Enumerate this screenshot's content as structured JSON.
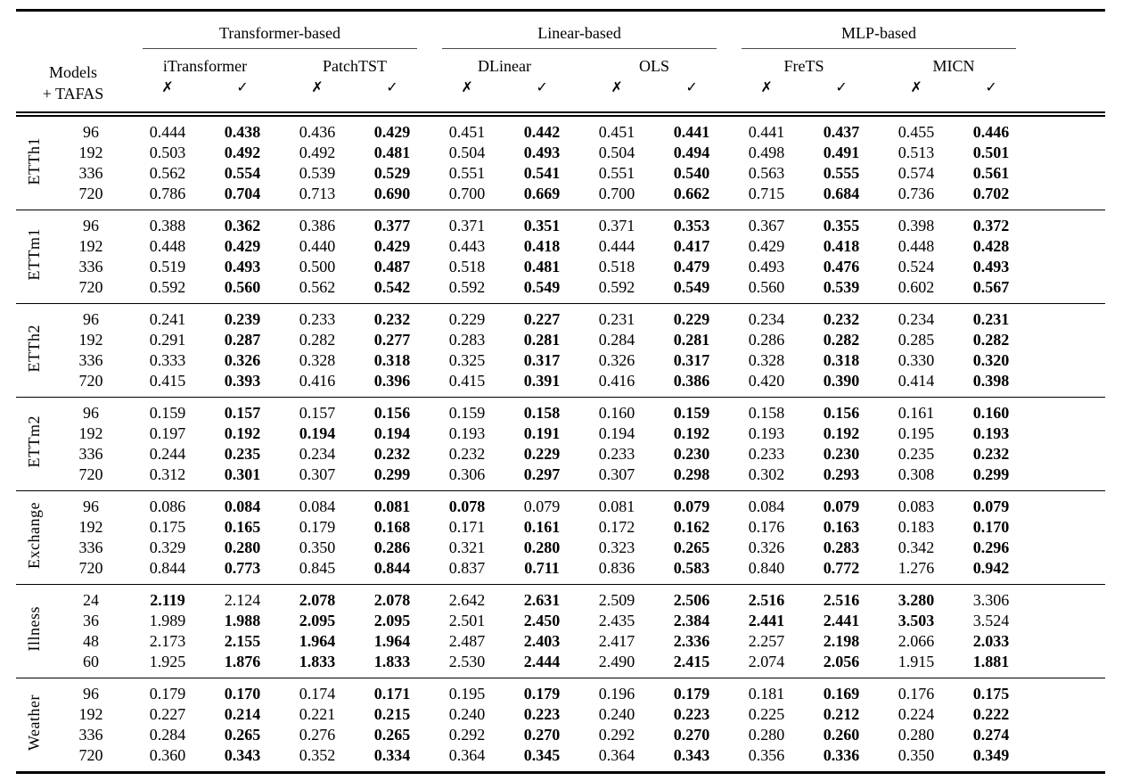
{
  "chart_data": {
    "type": "table",
    "corner": {
      "line1": "Models",
      "line2": "+ TAFAS"
    },
    "group_headers": [
      "Transformer-based",
      "Linear-based",
      "MLP-based"
    ],
    "models": [
      "iTransformer",
      "PatchTST",
      "DLinear",
      "OLS",
      "FreTS",
      "MICN"
    ],
    "symbols": {
      "without": "✗",
      "with": "✓"
    },
    "column_order_note": "for each model: left column = ✗ (without TAFAS), right column = ✓ (with TAFAS)",
    "sections": [
      {
        "dataset": "ETTh1",
        "rows": [
          {
            "horizon": "96",
            "values": [
              "0.444",
              "0.438",
              "0.436",
              "0.429",
              "0.451",
              "0.442",
              "0.451",
              "0.441",
              "0.441",
              "0.437",
              "0.455",
              "0.446"
            ],
            "bold": [
              0,
              1,
              0,
              1,
              0,
              1,
              0,
              1,
              0,
              1,
              0,
              1
            ]
          },
          {
            "horizon": "192",
            "values": [
              "0.503",
              "0.492",
              "0.492",
              "0.481",
              "0.504",
              "0.493",
              "0.504",
              "0.494",
              "0.498",
              "0.491",
              "0.513",
              "0.501"
            ],
            "bold": [
              0,
              1,
              0,
              1,
              0,
              1,
              0,
              1,
              0,
              1,
              0,
              1
            ]
          },
          {
            "horizon": "336",
            "values": [
              "0.562",
              "0.554",
              "0.539",
              "0.529",
              "0.551",
              "0.541",
              "0.551",
              "0.540",
              "0.563",
              "0.555",
              "0.574",
              "0.561"
            ],
            "bold": [
              0,
              1,
              0,
              1,
              0,
              1,
              0,
              1,
              0,
              1,
              0,
              1
            ]
          },
          {
            "horizon": "720",
            "values": [
              "0.786",
              "0.704",
              "0.713",
              "0.690",
              "0.700",
              "0.669",
              "0.700",
              "0.662",
              "0.715",
              "0.684",
              "0.736",
              "0.702"
            ],
            "bold": [
              0,
              1,
              0,
              1,
              0,
              1,
              0,
              1,
              0,
              1,
              0,
              1
            ]
          }
        ]
      },
      {
        "dataset": "ETTm1",
        "rows": [
          {
            "horizon": "96",
            "values": [
              "0.388",
              "0.362",
              "0.386",
              "0.377",
              "0.371",
              "0.351",
              "0.371",
              "0.353",
              "0.367",
              "0.355",
              "0.398",
              "0.372"
            ],
            "bold": [
              0,
              1,
              0,
              1,
              0,
              1,
              0,
              1,
              0,
              1,
              0,
              1
            ]
          },
          {
            "horizon": "192",
            "values": [
              "0.448",
              "0.429",
              "0.440",
              "0.429",
              "0.443",
              "0.418",
              "0.444",
              "0.417",
              "0.429",
              "0.418",
              "0.448",
              "0.428"
            ],
            "bold": [
              0,
              1,
              0,
              1,
              0,
              1,
              0,
              1,
              0,
              1,
              0,
              1
            ]
          },
          {
            "horizon": "336",
            "values": [
              "0.519",
              "0.493",
              "0.500",
              "0.487",
              "0.518",
              "0.481",
              "0.518",
              "0.479",
              "0.493",
              "0.476",
              "0.524",
              "0.493"
            ],
            "bold": [
              0,
              1,
              0,
              1,
              0,
              1,
              0,
              1,
              0,
              1,
              0,
              1
            ]
          },
          {
            "horizon": "720",
            "values": [
              "0.592",
              "0.560",
              "0.562",
              "0.542",
              "0.592",
              "0.549",
              "0.592",
              "0.549",
              "0.560",
              "0.539",
              "0.602",
              "0.567"
            ],
            "bold": [
              0,
              1,
              0,
              1,
              0,
              1,
              0,
              1,
              0,
              1,
              0,
              1
            ]
          }
        ]
      },
      {
        "dataset": "ETTh2",
        "rows": [
          {
            "horizon": "96",
            "values": [
              "0.241",
              "0.239",
              "0.233",
              "0.232",
              "0.229",
              "0.227",
              "0.231",
              "0.229",
              "0.234",
              "0.232",
              "0.234",
              "0.231"
            ],
            "bold": [
              0,
              1,
              0,
              1,
              0,
              1,
              0,
              1,
              0,
              1,
              0,
              1
            ]
          },
          {
            "horizon": "192",
            "values": [
              "0.291",
              "0.287",
              "0.282",
              "0.277",
              "0.283",
              "0.281",
              "0.284",
              "0.281",
              "0.286",
              "0.282",
              "0.285",
              "0.282"
            ],
            "bold": [
              0,
              1,
              0,
              1,
              0,
              1,
              0,
              1,
              0,
              1,
              0,
              1
            ]
          },
          {
            "horizon": "336",
            "values": [
              "0.333",
              "0.326",
              "0.328",
              "0.318",
              "0.325",
              "0.317",
              "0.326",
              "0.317",
              "0.328",
              "0.318",
              "0.330",
              "0.320"
            ],
            "bold": [
              0,
              1,
              0,
              1,
              0,
              1,
              0,
              1,
              0,
              1,
              0,
              1
            ]
          },
          {
            "horizon": "720",
            "values": [
              "0.415",
              "0.393",
              "0.416",
              "0.396",
              "0.415",
              "0.391",
              "0.416",
              "0.386",
              "0.420",
              "0.390",
              "0.414",
              "0.398"
            ],
            "bold": [
              0,
              1,
              0,
              1,
              0,
              1,
              0,
              1,
              0,
              1,
              0,
              1
            ]
          }
        ]
      },
      {
        "dataset": "ETTm2",
        "rows": [
          {
            "horizon": "96",
            "values": [
              "0.159",
              "0.157",
              "0.157",
              "0.156",
              "0.159",
              "0.158",
              "0.160",
              "0.159",
              "0.158",
              "0.156",
              "0.161",
              "0.160"
            ],
            "bold": [
              0,
              1,
              0,
              1,
              0,
              1,
              0,
              1,
              0,
              1,
              0,
              1
            ]
          },
          {
            "horizon": "192",
            "values": [
              "0.197",
              "0.192",
              "0.194",
              "0.194",
              "0.193",
              "0.191",
              "0.194",
              "0.192",
              "0.193",
              "0.192",
              "0.195",
              "0.193"
            ],
            "bold": [
              0,
              1,
              1,
              1,
              0,
              1,
              0,
              1,
              0,
              1,
              0,
              1
            ]
          },
          {
            "horizon": "336",
            "values": [
              "0.244",
              "0.235",
              "0.234",
              "0.232",
              "0.232",
              "0.229",
              "0.233",
              "0.230",
              "0.233",
              "0.230",
              "0.235",
              "0.232"
            ],
            "bold": [
              0,
              1,
              0,
              1,
              0,
              1,
              0,
              1,
              0,
              1,
              0,
              1
            ]
          },
          {
            "horizon": "720",
            "values": [
              "0.312",
              "0.301",
              "0.307",
              "0.299",
              "0.306",
              "0.297",
              "0.307",
              "0.298",
              "0.302",
              "0.293",
              "0.308",
              "0.299"
            ],
            "bold": [
              0,
              1,
              0,
              1,
              0,
              1,
              0,
              1,
              0,
              1,
              0,
              1
            ]
          }
        ]
      },
      {
        "dataset": "Exchange",
        "rows": [
          {
            "horizon": "96",
            "values": [
              "0.086",
              "0.084",
              "0.084",
              "0.081",
              "0.078",
              "0.079",
              "0.081",
              "0.079",
              "0.084",
              "0.079",
              "0.083",
              "0.079"
            ],
            "bold": [
              0,
              1,
              0,
              1,
              1,
              0,
              0,
              1,
              0,
              1,
              0,
              1
            ]
          },
          {
            "horizon": "192",
            "values": [
              "0.175",
              "0.165",
              "0.179",
              "0.168",
              "0.171",
              "0.161",
              "0.172",
              "0.162",
              "0.176",
              "0.163",
              "0.183",
              "0.170"
            ],
            "bold": [
              0,
              1,
              0,
              1,
              0,
              1,
              0,
              1,
              0,
              1,
              0,
              1
            ]
          },
          {
            "horizon": "336",
            "values": [
              "0.329",
              "0.280",
              "0.350",
              "0.286",
              "0.321",
              "0.280",
              "0.323",
              "0.265",
              "0.326",
              "0.283",
              "0.342",
              "0.296"
            ],
            "bold": [
              0,
              1,
              0,
              1,
              0,
              1,
              0,
              1,
              0,
              1,
              0,
              1
            ]
          },
          {
            "horizon": "720",
            "values": [
              "0.844",
              "0.773",
              "0.845",
              "0.844",
              "0.837",
              "0.711",
              "0.836",
              "0.583",
              "0.840",
              "0.772",
              "1.276",
              "0.942"
            ],
            "bold": [
              0,
              1,
              0,
              1,
              0,
              1,
              0,
              1,
              0,
              1,
              0,
              1
            ]
          }
        ]
      },
      {
        "dataset": "Illness",
        "rows": [
          {
            "horizon": "24",
            "values": [
              "2.119",
              "2.124",
              "2.078",
              "2.078",
              "2.642",
              "2.631",
              "2.509",
              "2.506",
              "2.516",
              "2.516",
              "3.280",
              "3.306"
            ],
            "bold": [
              1,
              0,
              1,
              1,
              0,
              1,
              0,
              1,
              1,
              1,
              1,
              0
            ]
          },
          {
            "horizon": "36",
            "values": [
              "1.989",
              "1.988",
              "2.095",
              "2.095",
              "2.501",
              "2.450",
              "2.435",
              "2.384",
              "2.441",
              "2.441",
              "3.503",
              "3.524"
            ],
            "bold": [
              0,
              1,
              1,
              1,
              0,
              1,
              0,
              1,
              1,
              1,
              1,
              0
            ]
          },
          {
            "horizon": "48",
            "values": [
              "2.173",
              "2.155",
              "1.964",
              "1.964",
              "2.487",
              "2.403",
              "2.417",
              "2.336",
              "2.257",
              "2.198",
              "2.066",
              "2.033"
            ],
            "bold": [
              0,
              1,
              1,
              1,
              0,
              1,
              0,
              1,
              0,
              1,
              0,
              1
            ]
          },
          {
            "horizon": "60",
            "values": [
              "1.925",
              "1.876",
              "1.833",
              "1.833",
              "2.530",
              "2.444",
              "2.490",
              "2.415",
              "2.074",
              "2.056",
              "1.915",
              "1.881"
            ],
            "bold": [
              0,
              1,
              1,
              1,
              0,
              1,
              0,
              1,
              0,
              1,
              0,
              1
            ]
          }
        ]
      },
      {
        "dataset": "Weather",
        "rows": [
          {
            "horizon": "96",
            "values": [
              "0.179",
              "0.170",
              "0.174",
              "0.171",
              "0.195",
              "0.179",
              "0.196",
              "0.179",
              "0.181",
              "0.169",
              "0.176",
              "0.175"
            ],
            "bold": [
              0,
              1,
              0,
              1,
              0,
              1,
              0,
              1,
              0,
              1,
              0,
              1
            ]
          },
          {
            "horizon": "192",
            "values": [
              "0.227",
              "0.214",
              "0.221",
              "0.215",
              "0.240",
              "0.223",
              "0.240",
              "0.223",
              "0.225",
              "0.212",
              "0.224",
              "0.222"
            ],
            "bold": [
              0,
              1,
              0,
              1,
              0,
              1,
              0,
              1,
              0,
              1,
              0,
              1
            ]
          },
          {
            "horizon": "336",
            "values": [
              "0.284",
              "0.265",
              "0.276",
              "0.265",
              "0.292",
              "0.270",
              "0.292",
              "0.270",
              "0.280",
              "0.260",
              "0.280",
              "0.274"
            ],
            "bold": [
              0,
              1,
              0,
              1,
              0,
              1,
              0,
              1,
              0,
              1,
              0,
              1
            ]
          },
          {
            "horizon": "720",
            "values": [
              "0.360",
              "0.343",
              "0.352",
              "0.334",
              "0.364",
              "0.345",
              "0.364",
              "0.343",
              "0.356",
              "0.336",
              "0.350",
              "0.349"
            ],
            "bold": [
              0,
              1,
              0,
              1,
              0,
              1,
              0,
              1,
              0,
              1,
              0,
              1
            ]
          }
        ]
      }
    ]
  }
}
